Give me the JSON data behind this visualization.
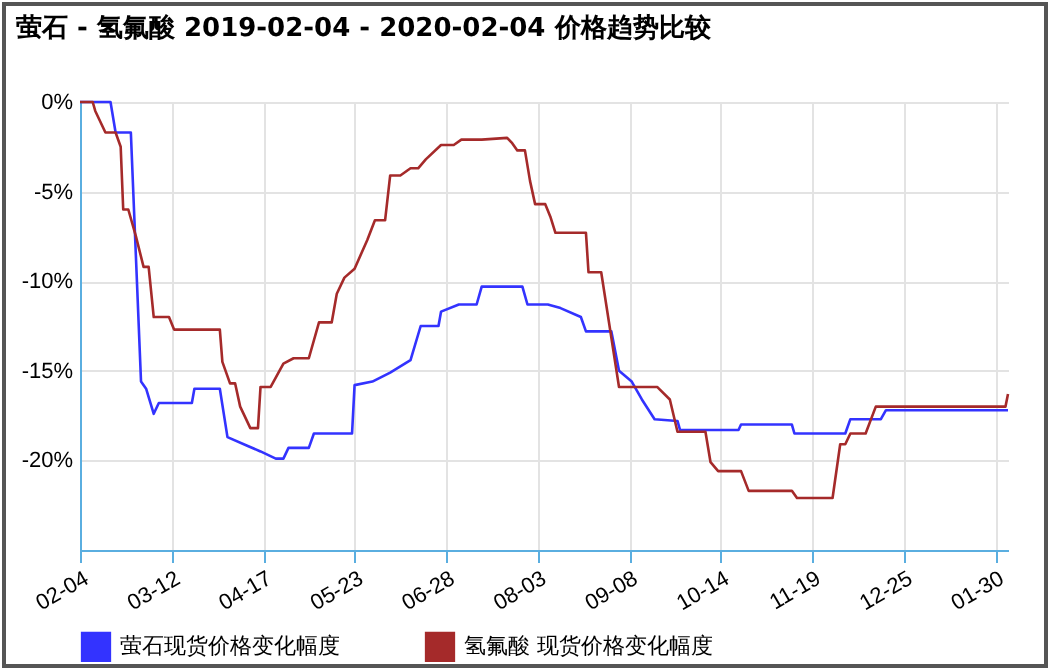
{
  "chart_data": {
    "type": "line",
    "title": "萤石 - 氢氟酸 2019-02-04 - 2020-02-04 价格趋势比较",
    "xlim": [
      "2019-02-04",
      "2020-02-04"
    ],
    "xticks": [
      {
        "value": "2019-02-04",
        "label": "02-04"
      },
      {
        "value": "2019-03-12",
        "label": "03-12"
      },
      {
        "value": "2019-04-17",
        "label": "04-17"
      },
      {
        "value": "2019-05-23",
        "label": "05-23"
      },
      {
        "value": "2019-06-28",
        "label": "06-28"
      },
      {
        "value": "2019-08-03",
        "label": "08-03"
      },
      {
        "value": "2019-09-08",
        "label": "09-08"
      },
      {
        "value": "2019-10-14",
        "label": "10-14"
      },
      {
        "value": "2019-11-19",
        "label": "11-19"
      },
      {
        "value": "2019-12-25",
        "label": "12-25"
      },
      {
        "value": "2020-01-30",
        "label": "01-30"
      }
    ],
    "ylim": [
      -25,
      0
    ],
    "yticks": [
      {
        "value": 0,
        "label": "0%"
      },
      {
        "value": -5,
        "label": "-5%"
      },
      {
        "value": -10,
        "label": "-10%"
      },
      {
        "value": -15,
        "label": "-15%"
      },
      {
        "value": -20,
        "label": "-20%"
      }
    ],
    "grid": true,
    "legend": "bottom",
    "series": [
      {
        "name": "萤石现货价格变化幅度",
        "color": "#3333ff",
        "x": [
          "2019-02-04",
          "2019-02-16",
          "2019-02-18",
          "2019-02-24",
          "2019-02-28",
          "2019-03-02",
          "2019-03-05",
          "2019-03-07",
          "2019-03-20",
          "2019-03-21",
          "2019-03-31",
          "2019-04-03",
          "2019-04-11",
          "2019-04-16",
          "2019-04-22",
          "2019-04-25",
          "2019-04-27",
          "2019-05-05",
          "2019-05-07",
          "2019-05-22",
          "2019-05-23",
          "2019-05-30",
          "2019-06-06",
          "2019-06-14",
          "2019-06-18",
          "2019-06-25",
          "2019-06-26",
          "2019-07-03",
          "2019-07-10",
          "2019-07-12",
          "2019-07-28",
          "2019-07-30",
          "2019-08-07",
          "2019-08-12",
          "2019-08-20",
          "2019-08-22",
          "2019-09-01",
          "2019-09-04",
          "2019-09-09",
          "2019-09-13",
          "2019-09-18",
          "2019-09-27",
          "2019-09-28",
          "2019-10-21",
          "2019-10-22",
          "2019-11-11",
          "2019-11-12",
          "2019-12-02",
          "2019-12-04",
          "2019-12-16",
          "2019-12-18",
          "2020-02-04"
        ],
        "values": [
          0,
          0,
          -1.7,
          -1.7,
          -15.6,
          -16,
          -17.4,
          -16.8,
          -16.8,
          -16,
          -16,
          -18.7,
          -19.2,
          -19.5,
          -19.9,
          -19.9,
          -19.3,
          -19.3,
          -18.5,
          -18.5,
          -15.8,
          -15.6,
          -15.1,
          -14.4,
          -12.5,
          -12.5,
          -11.7,
          -11.3,
          -11.3,
          -10.3,
          -10.3,
          -11.3,
          -11.3,
          -11.5,
          -12,
          -12.8,
          -12.8,
          -15,
          -15.6,
          -16.6,
          -17.7,
          -17.8,
          -18.3,
          -18.3,
          -18,
          -18,
          -18.5,
          -18.5,
          -17.7,
          -17.7,
          -17.2,
          -17.2
        ]
      },
      {
        "name": "氢氟酸 现货价格变化幅度",
        "color": "#a52a2a",
        "x": [
          "2019-02-04",
          "2019-02-09",
          "2019-02-10",
          "2019-02-14",
          "2019-02-18",
          "2019-02-20",
          "2019-02-21",
          "2019-02-23",
          "2019-02-26",
          "2019-03-01",
          "2019-03-03",
          "2019-03-05",
          "2019-03-11",
          "2019-03-13",
          "2019-03-31",
          "2019-04-01",
          "2019-04-04",
          "2019-04-06",
          "2019-04-08",
          "2019-04-12",
          "2019-04-15",
          "2019-04-16",
          "2019-04-20",
          "2019-04-25",
          "2019-04-29",
          "2019-05-05",
          "2019-05-09",
          "2019-05-14",
          "2019-05-16",
          "2019-05-19",
          "2019-05-23",
          "2019-05-28",
          "2019-05-31",
          "2019-06-04",
          "2019-06-06",
          "2019-06-10",
          "2019-06-14",
          "2019-06-17",
          "2019-06-20",
          "2019-06-26",
          "2019-07-01",
          "2019-07-04",
          "2019-07-12",
          "2019-07-22",
          "2019-07-24",
          "2019-07-26",
          "2019-07-29",
          "2019-07-31",
          "2019-08-02",
          "2019-08-06",
          "2019-08-08",
          "2019-08-10",
          "2019-08-22",
          "2019-08-23",
          "2019-08-28",
          "2019-09-04",
          "2019-09-19",
          "2019-09-24",
          "2019-09-27",
          "2019-10-08",
          "2019-10-10",
          "2019-10-13",
          "2019-10-22",
          "2019-10-25",
          "2019-11-11",
          "2019-11-13",
          "2019-11-27",
          "2019-11-30",
          "2019-12-02",
          "2019-12-04",
          "2019-12-10",
          "2019-12-14",
          "2020-02-03",
          "2020-02-04"
        ],
        "values": [
          0,
          0,
          -0.5,
          -1.7,
          -1.7,
          -2.5,
          -6,
          -6,
          -7.5,
          -9.2,
          -9.2,
          -12,
          -12,
          -12.7,
          -12.7,
          -14.5,
          -15.7,
          -15.7,
          -17,
          -18.2,
          -18.2,
          -15.9,
          -15.9,
          -14.6,
          -14.3,
          -14.3,
          -12.3,
          -12.3,
          -10.7,
          -9.8,
          -9.3,
          -7.7,
          -6.6,
          -6.6,
          -4.1,
          -4.1,
          -3.7,
          -3.7,
          -3.2,
          -2.4,
          -2.4,
          -2.1,
          -2.1,
          -2,
          -2.3,
          -2.7,
          -2.7,
          -4.4,
          -5.7,
          -5.7,
          -6.4,
          -7.3,
          -7.3,
          -9.5,
          -9.5,
          -15.9,
          -15.9,
          -16.6,
          -18.4,
          -18.4,
          -20.1,
          -20.6,
          -20.6,
          -21.7,
          -21.7,
          -22.1,
          -22.1,
          -19.1,
          -19.1,
          -18.5,
          -18.5,
          -17,
          -17,
          -16.3
        ]
      }
    ]
  }
}
